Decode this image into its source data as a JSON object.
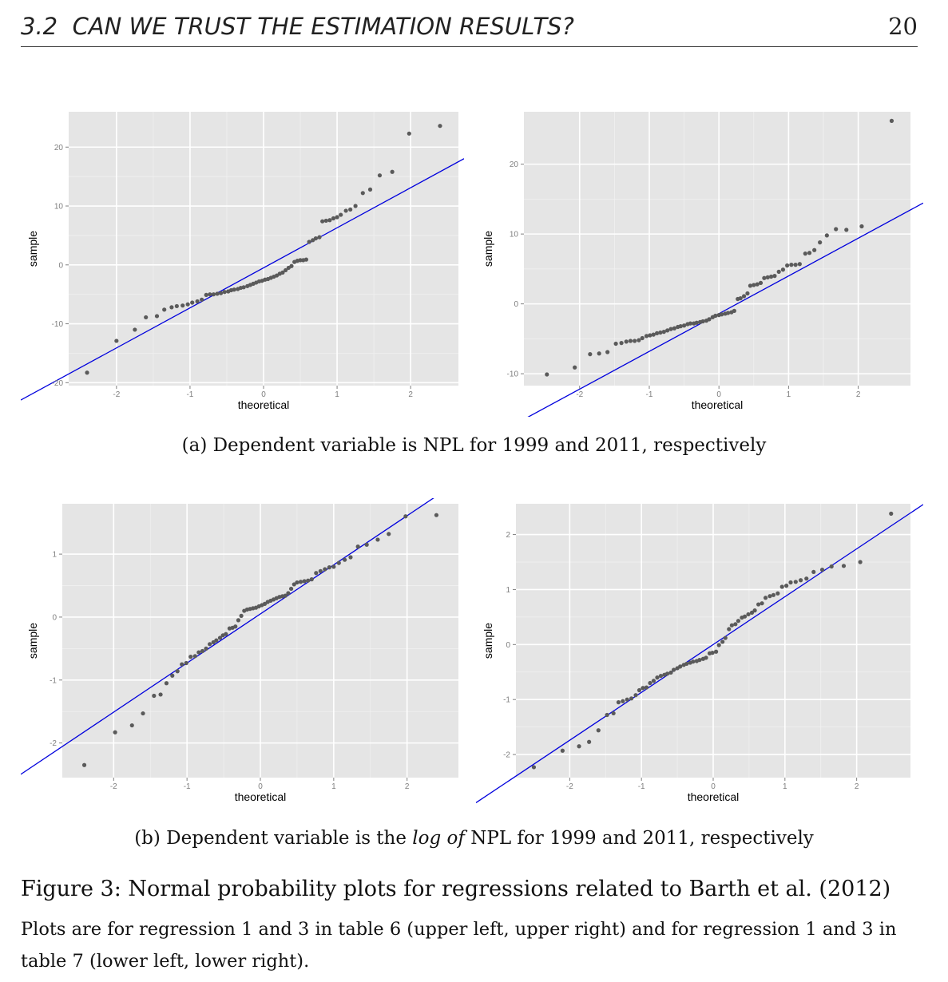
{
  "header": {
    "section": "3.2",
    "title": "CAN WE TRUST THE ESTIMATION RESULTS?",
    "page_number": "20"
  },
  "captions": {
    "a": "(a) Dependent variable is NPL for 1999 and 2011, respectively",
    "b_pre": "(b) Dependent variable is the ",
    "b_em": "log of",
    "b_post": " NPL for 1999 and 2011, respectively"
  },
  "figure": {
    "title": "Figure 3: Normal probability plots for regressions related to Barth et al. (2012)",
    "text": "Plots are for regression 1 and 3 in table 6 (upper left, upper right) and for regression 1 and 3 in table 7 (lower left, lower right)."
  },
  "chart_data": [
    {
      "type": "scatter",
      "id": "upper-left",
      "xlabel": "theoretical",
      "ylabel": "sample",
      "xlim": [
        -2.65,
        2.65
      ],
      "ylim": [
        -20.5,
        26
      ],
      "xticks": [
        -2,
        -1,
        0,
        1,
        2
      ],
      "yticks": [
        -20,
        -10,
        0,
        10,
        20
      ],
      "point_color": "#5a5a5a",
      "line_color": "#0000dd",
      "panel_bg": "#e5e5e5",
      "grid_color": "#ffffff",
      "reference_line": {
        "intercept": -0.5,
        "slope": 6.8
      },
      "points": [
        [
          -2.4,
          -18.3
        ],
        [
          -2.0,
          -12.9
        ],
        [
          -1.75,
          -11
        ],
        [
          -1.6,
          -8.9
        ],
        [
          -1.45,
          -8.7
        ],
        [
          -1.35,
          -7.6
        ],
        [
          -1.25,
          -7.2
        ],
        [
          -1.18,
          -7
        ],
        [
          -1.1,
          -6.9
        ],
        [
          -1.03,
          -6.7
        ],
        [
          -0.97,
          -6.4
        ],
        [
          -0.9,
          -6.2
        ],
        [
          -0.84,
          -5.9
        ],
        [
          -0.78,
          -5.1
        ],
        [
          -0.73,
          -5
        ],
        [
          -0.68,
          -5
        ],
        [
          -0.63,
          -4.9
        ],
        [
          -0.58,
          -4.8
        ],
        [
          -0.53,
          -4.6
        ],
        [
          -0.48,
          -4.5
        ],
        [
          -0.44,
          -4.3
        ],
        [
          -0.4,
          -4.2
        ],
        [
          -0.35,
          -4.1
        ],
        [
          -0.31,
          -3.9
        ],
        [
          -0.27,
          -3.8
        ],
        [
          -0.22,
          -3.6
        ],
        [
          -0.18,
          -3.4
        ],
        [
          -0.14,
          -3.2
        ],
        [
          -0.1,
          -3
        ],
        [
          -0.06,
          -2.8
        ],
        [
          -0.02,
          -2.7
        ],
        [
          0.02,
          -2.5
        ],
        [
          0.06,
          -2.4
        ],
        [
          0.1,
          -2.2
        ],
        [
          0.14,
          -2
        ],
        [
          0.18,
          -1.8
        ],
        [
          0.22,
          -1.5
        ],
        [
          0.26,
          -1.3
        ],
        [
          0.3,
          -0.9
        ],
        [
          0.34,
          -0.5
        ],
        [
          0.38,
          -0.2
        ],
        [
          0.42,
          0.5
        ],
        [
          0.46,
          0.7
        ],
        [
          0.5,
          0.8
        ],
        [
          0.54,
          0.8
        ],
        [
          0.58,
          0.9
        ],
        [
          0.62,
          3.9
        ],
        [
          0.67,
          4.2
        ],
        [
          0.71,
          4.5
        ],
        [
          0.76,
          4.7
        ],
        [
          0.8,
          7.4
        ],
        [
          0.85,
          7.5
        ],
        [
          0.9,
          7.6
        ],
        [
          0.95,
          7.9
        ],
        [
          1.0,
          8.1
        ],
        [
          1.05,
          8.5
        ],
        [
          1.12,
          9.2
        ],
        [
          1.18,
          9.4
        ],
        [
          1.25,
          10.0
        ],
        [
          1.35,
          12.2
        ],
        [
          1.45,
          12.8
        ],
        [
          1.58,
          15.2
        ],
        [
          1.75,
          15.8
        ],
        [
          1.98,
          22.3
        ],
        [
          2.4,
          23.6
        ]
      ]
    },
    {
      "type": "scatter",
      "id": "upper-right",
      "xlabel": "theoretical",
      "ylabel": "sample",
      "xlim": [
        -2.8,
        2.75
      ],
      "ylim": [
        -11.7,
        27.5
      ],
      "xticks": [
        -2,
        -1,
        0,
        1,
        2
      ],
      "yticks": [
        -10,
        0,
        10,
        20
      ],
      "point_color": "#5a5a5a",
      "line_color": "#0000dd",
      "panel_bg": "#e5e5e5",
      "grid_color": "#ffffff",
      "reference_line": {
        "intercept": -1.4,
        "slope": 5.4
      },
      "points": [
        [
          -2.47,
          -10.1
        ],
        [
          -2.07,
          -9.1
        ],
        [
          -1.85,
          -7.2
        ],
        [
          -1.72,
          -7.1
        ],
        [
          -1.6,
          -6.9
        ],
        [
          -1.48,
          -5.7
        ],
        [
          -1.4,
          -5.6
        ],
        [
          -1.33,
          -5.4
        ],
        [
          -1.27,
          -5.3
        ],
        [
          -1.21,
          -5.3
        ],
        [
          -1.15,
          -5.2
        ],
        [
          -1.1,
          -4.9
        ],
        [
          -1.04,
          -4.6
        ],
        [
          -0.99,
          -4.5
        ],
        [
          -0.94,
          -4.4
        ],
        [
          -0.89,
          -4.2
        ],
        [
          -0.84,
          -4.1
        ],
        [
          -0.79,
          -4
        ],
        [
          -0.74,
          -3.8
        ],
        [
          -0.69,
          -3.6
        ],
        [
          -0.64,
          -3.5
        ],
        [
          -0.59,
          -3.3
        ],
        [
          -0.55,
          -3.2
        ],
        [
          -0.5,
          -3.1
        ],
        [
          -0.45,
          -2.9
        ],
        [
          -0.41,
          -2.8
        ],
        [
          -0.36,
          -2.8
        ],
        [
          -0.32,
          -2.7
        ],
        [
          -0.27,
          -2.6
        ],
        [
          -0.23,
          -2.5
        ],
        [
          -0.18,
          -2.4
        ],
        [
          -0.14,
          -2.2
        ],
        [
          -0.09,
          -1.9
        ],
        [
          -0.05,
          -1.7
        ],
        [
          0.0,
          -1.6
        ],
        [
          0.04,
          -1.5
        ],
        [
          0.09,
          -1.4
        ],
        [
          0.13,
          -1.3
        ],
        [
          0.18,
          -1.2
        ],
        [
          0.22,
          -1.0
        ],
        [
          0.27,
          0.7
        ],
        [
          0.31,
          0.8
        ],
        [
          0.36,
          1.1
        ],
        [
          0.41,
          1.5
        ],
        [
          0.45,
          2.6
        ],
        [
          0.5,
          2.7
        ],
        [
          0.55,
          2.8
        ],
        [
          0.6,
          3
        ],
        [
          0.65,
          3.7
        ],
        [
          0.7,
          3.8
        ],
        [
          0.75,
          3.9
        ],
        [
          0.8,
          4.0
        ],
        [
          0.86,
          4.6
        ],
        [
          0.92,
          4.9
        ],
        [
          0.98,
          5.5
        ],
        [
          1.04,
          5.6
        ],
        [
          1.1,
          5.6
        ],
        [
          1.16,
          5.7
        ],
        [
          1.24,
          7.2
        ],
        [
          1.3,
          7.3
        ],
        [
          1.37,
          7.7
        ],
        [
          1.45,
          8.8
        ],
        [
          1.55,
          9.8
        ],
        [
          1.68,
          10.7
        ],
        [
          1.83,
          10.6
        ],
        [
          2.05,
          11.1
        ],
        [
          2.48,
          26.2
        ]
      ]
    },
    {
      "type": "scatter",
      "id": "lower-left",
      "xlabel": "theoretical",
      "ylabel": "sample",
      "xlim": [
        -2.7,
        2.7
      ],
      "ylim": [
        -2.55,
        1.8
      ],
      "xticks": [
        -2,
        -1,
        0,
        1,
        2
      ],
      "yticks": [
        -2,
        -1,
        0,
        1
      ],
      "point_color": "#5a5a5a",
      "line_color": "#0000dd",
      "panel_bg": "#e5e5e5",
      "grid_color": "#ffffff",
      "reference_line": {
        "intercept": 0.05,
        "slope": 0.78
      },
      "points": [
        [
          -2.4,
          -2.35
        ],
        [
          -1.98,
          -1.83
        ],
        [
          -1.75,
          -1.72
        ],
        [
          -1.6,
          -1.53
        ],
        [
          -1.45,
          -1.25
        ],
        [
          -1.36,
          -1.23
        ],
        [
          -1.28,
          -1.05
        ],
        [
          -1.2,
          -0.93
        ],
        [
          -1.13,
          -0.86
        ],
        [
          -1.07,
          -0.75
        ],
        [
          -1.01,
          -0.73
        ],
        [
          -0.95,
          -0.63
        ],
        [
          -0.89,
          -0.62
        ],
        [
          -0.84,
          -0.56
        ],
        [
          -0.79,
          -0.54
        ],
        [
          -0.74,
          -0.5
        ],
        [
          -0.69,
          -0.43
        ],
        [
          -0.64,
          -0.4
        ],
        [
          -0.6,
          -0.37
        ],
        [
          -0.55,
          -0.33
        ],
        [
          -0.51,
          -0.29
        ],
        [
          -0.47,
          -0.27
        ],
        [
          -0.42,
          -0.18
        ],
        [
          -0.38,
          -0.17
        ],
        [
          -0.34,
          -0.15
        ],
        [
          -0.3,
          -0.05
        ],
        [
          -0.26,
          0.02
        ],
        [
          -0.22,
          0.1
        ],
        [
          -0.18,
          0.12
        ],
        [
          -0.14,
          0.13
        ],
        [
          -0.1,
          0.14
        ],
        [
          -0.06,
          0.15
        ],
        [
          -0.02,
          0.17
        ],
        [
          0.02,
          0.19
        ],
        [
          0.06,
          0.21
        ],
        [
          0.1,
          0.24
        ],
        [
          0.14,
          0.26
        ],
        [
          0.18,
          0.28
        ],
        [
          0.22,
          0.3
        ],
        [
          0.26,
          0.32
        ],
        [
          0.3,
          0.33
        ],
        [
          0.34,
          0.34
        ],
        [
          0.38,
          0.38
        ],
        [
          0.42,
          0.45
        ],
        [
          0.46,
          0.52
        ],
        [
          0.5,
          0.55
        ],
        [
          0.55,
          0.56
        ],
        [
          0.6,
          0.57
        ],
        [
          0.65,
          0.58
        ],
        [
          0.7,
          0.6
        ],
        [
          0.76,
          0.7
        ],
        [
          0.82,
          0.73
        ],
        [
          0.88,
          0.76
        ],
        [
          0.94,
          0.79
        ],
        [
          1.0,
          0.8
        ],
        [
          1.07,
          0.86
        ],
        [
          1.15,
          0.91
        ],
        [
          1.23,
          0.95
        ],
        [
          1.33,
          1.12
        ],
        [
          1.45,
          1.15
        ],
        [
          1.6,
          1.23
        ],
        [
          1.75,
          1.32
        ],
        [
          1.98,
          1.6
        ],
        [
          2.4,
          1.62
        ]
      ]
    },
    {
      "type": "scatter",
      "id": "lower-right",
      "xlabel": "theoretical",
      "ylabel": "sample",
      "xlim": [
        -2.75,
        2.75
      ],
      "ylim": [
        -2.42,
        2.56
      ],
      "xticks": [
        -2,
        -1,
        0,
        1,
        2
      ],
      "yticks": [
        -2,
        -1,
        0,
        1,
        2
      ],
      "point_color": "#5a5a5a",
      "line_color": "#0000dd",
      "panel_bg": "#e5e5e5",
      "grid_color": "#ffffff",
      "reference_line": {
        "intercept": 0.0,
        "slope": 0.87
      },
      "points": [
        [
          -2.5,
          -2.23
        ],
        [
          -2.1,
          -1.93
        ],
        [
          -1.87,
          -1.85
        ],
        [
          -1.73,
          -1.77
        ],
        [
          -1.6,
          -1.56
        ],
        [
          -1.48,
          -1.28
        ],
        [
          -1.39,
          -1.25
        ],
        [
          -1.32,
          -1.05
        ],
        [
          -1.26,
          -1.03
        ],
        [
          -1.2,
          -1.0
        ],
        [
          -1.14,
          -0.98
        ],
        [
          -1.08,
          -0.92
        ],
        [
          -1.03,
          -0.83
        ],
        [
          -0.98,
          -0.79
        ],
        [
          -0.93,
          -0.78
        ],
        [
          -0.88,
          -0.7
        ],
        [
          -0.83,
          -0.66
        ],
        [
          -0.78,
          -0.6
        ],
        [
          -0.73,
          -0.57
        ],
        [
          -0.68,
          -0.55
        ],
        [
          -0.64,
          -0.53
        ],
        [
          -0.59,
          -0.51
        ],
        [
          -0.55,
          -0.46
        ],
        [
          -0.5,
          -0.43
        ],
        [
          -0.46,
          -0.4
        ],
        [
          -0.41,
          -0.37
        ],
        [
          -0.37,
          -0.35
        ],
        [
          -0.32,
          -0.33
        ],
        [
          -0.28,
          -0.31
        ],
        [
          -0.23,
          -0.3
        ],
        [
          -0.19,
          -0.28
        ],
        [
          -0.14,
          -0.26
        ],
        [
          -0.1,
          -0.24
        ],
        [
          -0.05,
          -0.16
        ],
        [
          -0.01,
          -0.15
        ],
        [
          0.04,
          -0.13
        ],
        [
          0.08,
          -0.01
        ],
        [
          0.13,
          0.05
        ],
        [
          0.17,
          0.12
        ],
        [
          0.22,
          0.28
        ],
        [
          0.26,
          0.35
        ],
        [
          0.31,
          0.37
        ],
        [
          0.35,
          0.43
        ],
        [
          0.4,
          0.49
        ],
        [
          0.44,
          0.51
        ],
        [
          0.49,
          0.55
        ],
        [
          0.54,
          0.58
        ],
        [
          0.58,
          0.62
        ],
        [
          0.63,
          0.73
        ],
        [
          0.68,
          0.75
        ],
        [
          0.73,
          0.85
        ],
        [
          0.79,
          0.88
        ],
        [
          0.84,
          0.9
        ],
        [
          0.9,
          0.93
        ],
        [
          0.96,
          1.05
        ],
        [
          1.02,
          1.07
        ],
        [
          1.08,
          1.13
        ],
        [
          1.15,
          1.14
        ],
        [
          1.22,
          1.17
        ],
        [
          1.3,
          1.2
        ],
        [
          1.4,
          1.32
        ],
        [
          1.52,
          1.36
        ],
        [
          1.65,
          1.42
        ],
        [
          1.82,
          1.43
        ],
        [
          2.05,
          1.5
        ],
        [
          2.48,
          2.38
        ]
      ]
    }
  ]
}
